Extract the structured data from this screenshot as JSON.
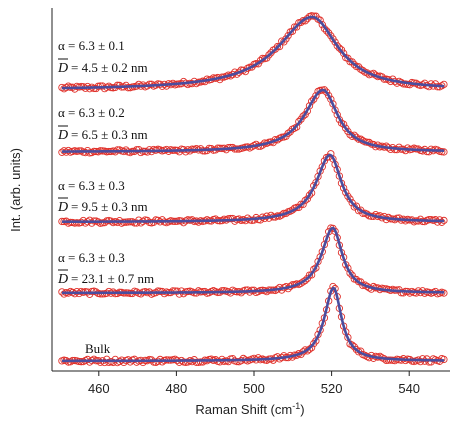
{
  "chart_data": {
    "type": "line",
    "xlabel": "Raman Shift (cm",
    "xlabel_sup": "-1",
    "xlabel_close": ")",
    "ylabel": "Int. (arb. units)",
    "xlim": [
      450,
      550
    ],
    "xticks": [
      "460",
      "480",
      "500",
      "520",
      "540"
    ],
    "xtick_values": [
      460,
      480,
      500,
      520,
      540
    ],
    "grid": false,
    "marker_color": "#e0302a",
    "fit_color": "#4a4d9e",
    "series": [
      {
        "center": 515.0,
        "gamma": 8.0,
        "asym": 2.2,
        "alpha_label": "α = 6.3 ± 0.1",
        "d_label": "= 4.5 ± 0.2 nm"
      },
      {
        "center": 517.8,
        "gamma": 4.6,
        "asym": 1.8,
        "alpha_label": "α = 6.3 ± 0.2",
        "d_label": "= 6.5 ± 0.3 nm"
      },
      {
        "center": 519.6,
        "gamma": 3.6,
        "asym": 1.4,
        "alpha_label": "α = 6.3 ± 0.3",
        "d_label": "= 9.5 ± 0.3 nm"
      },
      {
        "center": 520.3,
        "gamma": 3.0,
        "asym": 1.2,
        "alpha_label": "α = 6.3 ± 0.3",
        "d_label": "= 23.1 ± 0.7 nm"
      },
      {
        "center": 520.5,
        "gamma": 2.5,
        "asym": 1.0,
        "bulk_label": "Bulk"
      }
    ]
  }
}
